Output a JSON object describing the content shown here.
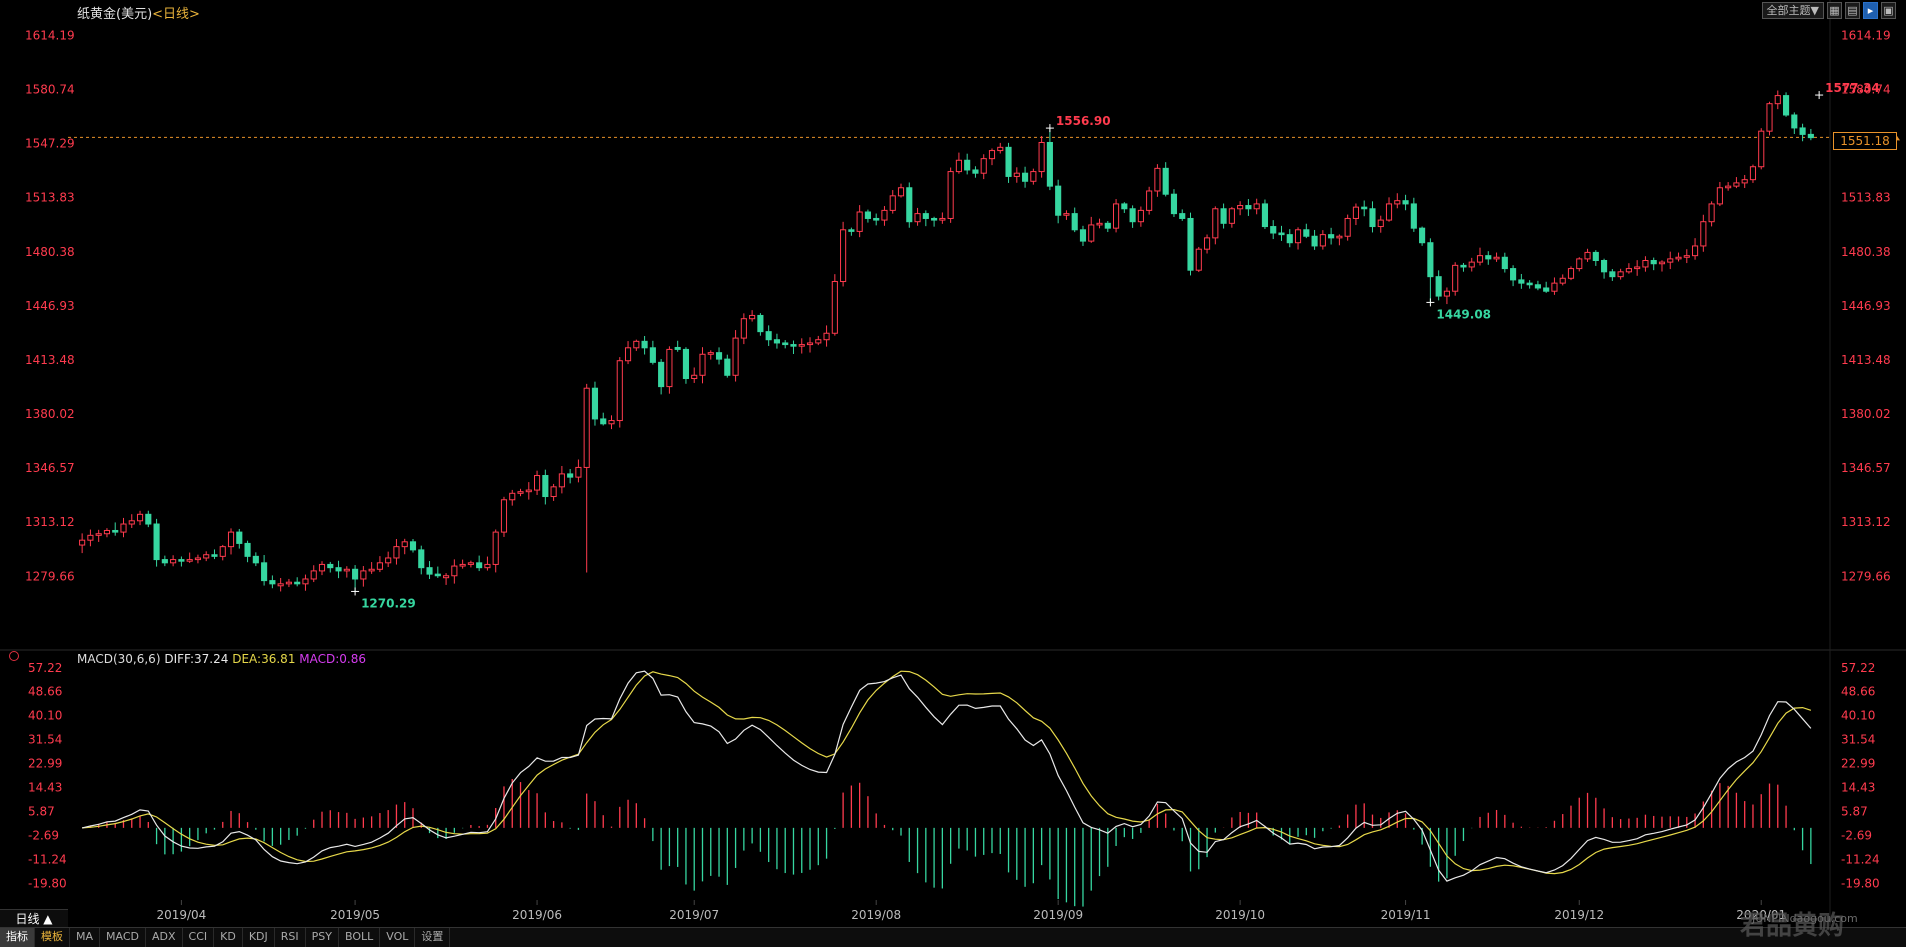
{
  "window": {
    "title_name": "纸黄金(美元)",
    "title_period": "<日线>",
    "buttons": {
      "theme": "全部主题▼"
    },
    "period_label": "日线 ▲"
  },
  "price_tag": "1551.18",
  "bottom_tabs": [
    "指标",
    "模板",
    "MA",
    "MACD",
    "ADX",
    "CCI",
    "KD",
    "KDJ",
    "RSI",
    "PSY",
    "BOLL",
    "VOL",
    "设置"
  ],
  "watermark": {
    "text": "君品黄购",
    "sub": "JUNPINdaogou.com"
  },
  "colors": {
    "up": "#ff3b4e",
    "down": "#36d6a0",
    "axis_text": "#ff3b4e",
    "diff": "#e8e8e8",
    "dea": "#e6d84a",
    "macd": "#d63cf0",
    "ref_line": "#e8922a"
  },
  "chart_data": [
    {
      "type": "candlestick",
      "ylim": [
        1265,
        1625
      ],
      "yticks": [
        "1614.19",
        "1580.74",
        "1547.29",
        "1513.83",
        "1480.38",
        "1446.93",
        "1413.48",
        "1380.02",
        "1346.57",
        "1313.12",
        "1279.66"
      ],
      "ytick_values": [
        1614.19,
        1580.74,
        1547.29,
        1513.83,
        1480.38,
        1446.93,
        1413.48,
        1380.02,
        1346.57,
        1313.12,
        1279.66
      ],
      "xlabels": [
        {
          "label": "2019/04",
          "index": 12
        },
        {
          "label": "2019/05",
          "index": 33
        },
        {
          "label": "2019/06",
          "index": 55
        },
        {
          "label": "2019/07",
          "index": 74
        },
        {
          "label": "2019/08",
          "index": 96
        },
        {
          "label": "2019/09",
          "index": 118
        },
        {
          "label": "2019/10",
          "index": 140
        },
        {
          "label": "2019/11",
          "index": 160
        },
        {
          "label": "2019/12",
          "index": 181
        },
        {
          "label": "2020/01",
          "index": 203
        }
      ],
      "reference_price": 1551.18,
      "annotations": [
        {
          "label": "1556.90",
          "index": 117,
          "value": 1556.9,
          "kind": "high"
        },
        {
          "label": "1577.34",
          "index": 210,
          "value": 1577.34,
          "kind": "high"
        },
        {
          "label": "1449.08",
          "index": 163,
          "value": 1449.08,
          "kind": "low"
        },
        {
          "label": "1270.29",
          "index": 33,
          "value": 1270.29,
          "kind": "low"
        }
      ],
      "closes": [
        1302,
        1305,
        1306,
        1308,
        1307,
        1312,
        1314,
        1318,
        1312,
        1290,
        1288,
        1290,
        1289,
        1290,
        1291,
        1293,
        1292,
        1298,
        1307,
        1300,
        1292,
        1288,
        1277,
        1275,
        1275,
        1276,
        1275,
        1278,
        1283,
        1287,
        1285,
        1283,
        1284,
        1278,
        1283,
        1284,
        1288,
        1291,
        1298,
        1301,
        1296,
        1285,
        1281,
        1280,
        1280,
        1286,
        1287,
        1288,
        1285,
        1287,
        1307,
        1327,
        1331,
        1332,
        1333,
        1342,
        1329,
        1335,
        1343,
        1341,
        1347,
        1396,
        1377,
        1374,
        1376,
        1413,
        1421,
        1425,
        1421,
        1412,
        1397,
        1420,
        1420,
        1402,
        1404,
        1417,
        1418,
        1414,
        1404,
        1427,
        1439,
        1441,
        1431,
        1426,
        1424,
        1423,
        1422,
        1423,
        1424,
        1426,
        1430,
        1462,
        1494,
        1493,
        1505,
        1501,
        1500,
        1506,
        1515,
        1520,
        1499,
        1504,
        1501,
        1500,
        1501,
        1530,
        1537,
        1531,
        1529,
        1538,
        1543,
        1545,
        1527,
        1529,
        1524,
        1530,
        1548,
        1521,
        1503,
        1504,
        1494,
        1487,
        1497,
        1498,
        1495,
        1510,
        1507,
        1499,
        1506,
        1518,
        1532,
        1516,
        1504,
        1501,
        1469,
        1482,
        1489,
        1507,
        1498,
        1507,
        1509,
        1507,
        1510,
        1496,
        1492,
        1491,
        1486,
        1494,
        1490,
        1484,
        1491,
        1489,
        1490,
        1501,
        1508,
        1507,
        1496,
        1500,
        1510,
        1512,
        1510,
        1495,
        1486,
        1465,
        1453,
        1456,
        1472,
        1471,
        1474,
        1478,
        1476,
        1477,
        1470,
        1463,
        1461,
        1460,
        1458,
        1456,
        1461,
        1464,
        1470,
        1476,
        1480,
        1475,
        1468,
        1465,
        1468,
        1470,
        1471,
        1475,
        1473,
        1474,
        1476,
        1477,
        1478,
        1484,
        1499,
        1510,
        1520,
        1521,
        1523,
        1525,
        1533,
        1555,
        1572,
        1577,
        1565,
        1557,
        1553,
        1551
      ]
    },
    {
      "type": "macd",
      "label": "MACD(30,6,6)",
      "diff_label": "DIFF:37.24",
      "dea_label": "DEA:36.81",
      "macd_label": "MACD:0.86",
      "ylim": [
        -24,
        60
      ],
      "yticks": [
        "57.22",
        "48.66",
        "40.10",
        "31.54",
        "22.99",
        "14.43",
        "5.87",
        "-2.69",
        "-11.24",
        "-19.80"
      ],
      "ytick_values": [
        57.22,
        48.66,
        40.1,
        31.54,
        22.99,
        14.43,
        5.87,
        -2.69,
        -11.24,
        -19.8
      ],
      "final": {
        "diff": 37.24,
        "dea": 36.81,
        "macd": 0.86
      }
    }
  ]
}
